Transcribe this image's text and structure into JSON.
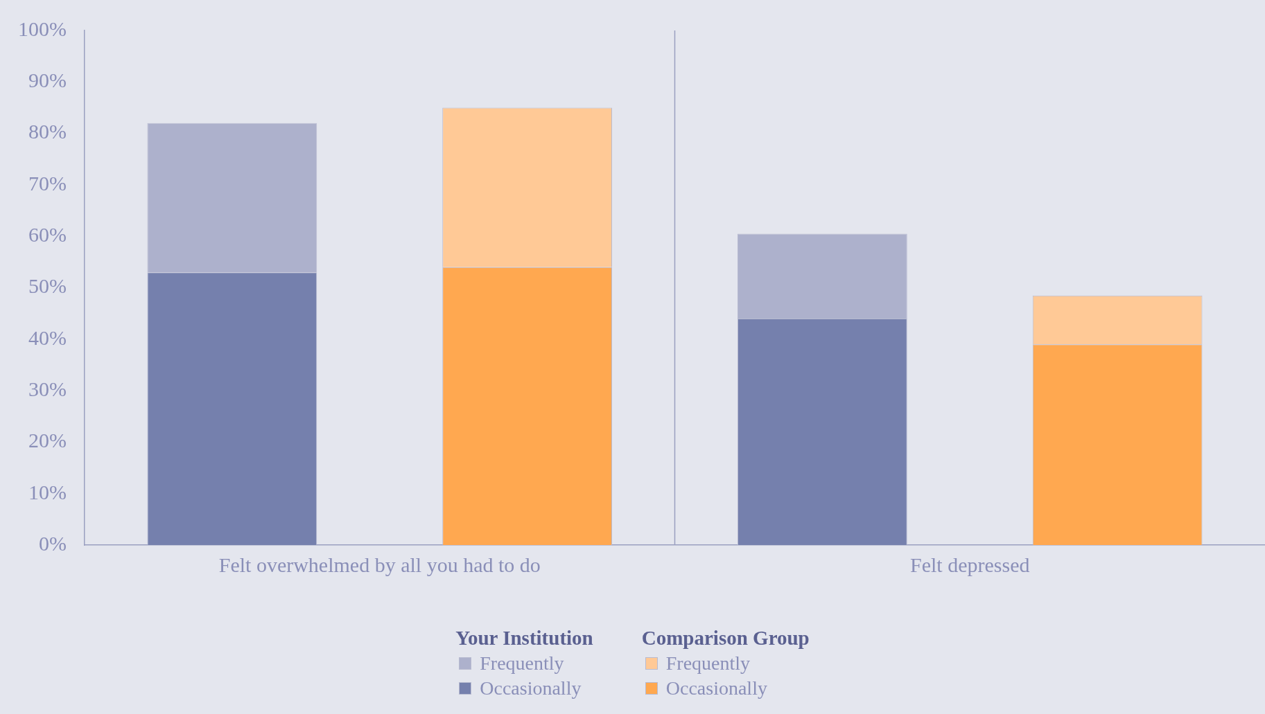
{
  "chart_data": {
    "type": "bar",
    "stacked": true,
    "categories": [
      null,
      null,
      null,
      null
    ],
    "series": [
      {
        "name": "Occasionally",
        "color": "#7580ad",
        "values": [
          53,
          null,
          44,
          null
        ]
      },
      {
        "name": "Frequently",
        "color": "#adb1cc",
        "values": [
          29,
          null,
          16.5,
          null
        ]
      },
      {
        "name": "Occasionally",
        "color": "#ffa850",
        "values": [
          null,
          54,
          null,
          39
        ]
      },
      {
        "name": "Frequently",
        "color": "#ffc996",
        "values": [
          null,
          31,
          null,
          9.5
        ]
      }
    ],
    "annotations": [
      "Felt overwhelmed by all you had to do",
      "Felt depressed",
      "Your Institution",
      "Comparison Group"
    ],
    "ylim": [
      0,
      100
    ],
    "yticks": [
      {
        "value": 0,
        "label": "0%"
      },
      {
        "value": 10,
        "label": "10%"
      },
      {
        "value": 20,
        "label": "20%"
      },
      {
        "value": 30,
        "label": "30%"
      },
      {
        "value": 40,
        "label": "40%"
      },
      {
        "value": 50,
        "label": "50%"
      },
      {
        "value": 60,
        "label": "60%"
      },
      {
        "value": 70,
        "label": "70%"
      },
      {
        "value": 80,
        "label": "80%"
      },
      {
        "value": 90,
        "label": "90%"
      },
      {
        "value": 100,
        "label": "100%"
      }
    ],
    "legend": "bottom"
  }
}
